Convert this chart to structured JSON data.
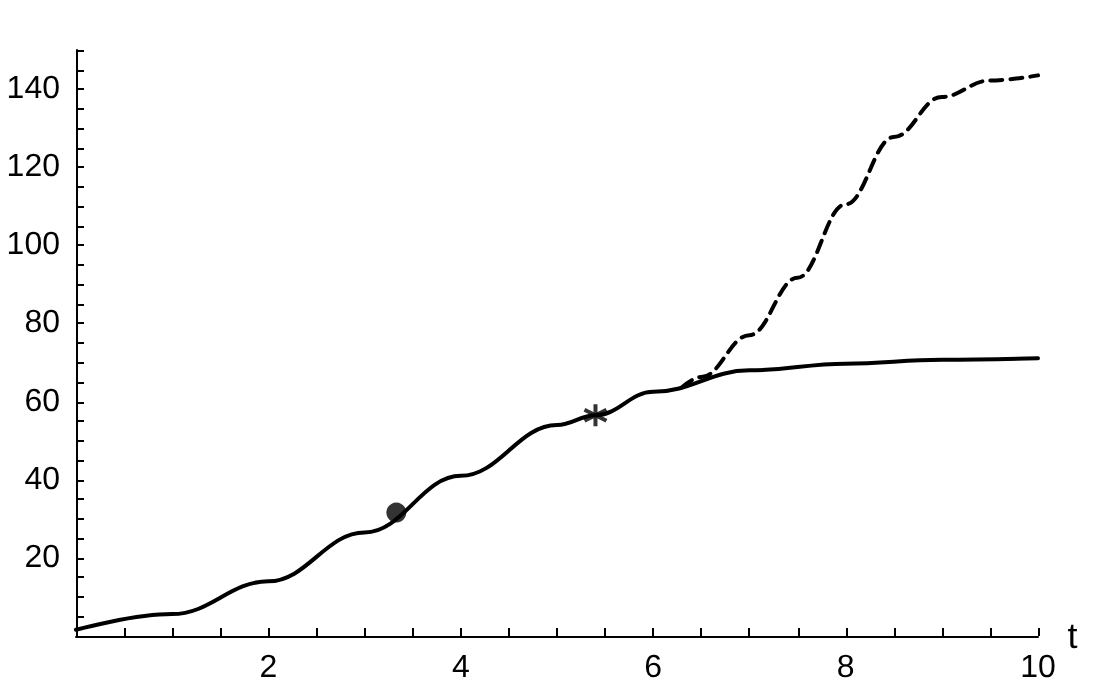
{
  "chart_data": {
    "type": "line",
    "xlabel": "t",
    "xlim": [
      0,
      10
    ],
    "ylim": [
      0,
      150
    ],
    "xticks": [
      {
        "value": 0.5,
        "label": null
      },
      {
        "value": 1,
        "label": null
      },
      {
        "value": 1.5,
        "label": null
      },
      2,
      {
        "value": 2.5,
        "label": null
      },
      {
        "value": 3,
        "label": null
      },
      {
        "value": 3.5,
        "label": null
      },
      4,
      {
        "value": 4.5,
        "label": null
      },
      {
        "value": 5,
        "label": null
      },
      {
        "value": 5.5,
        "label": null
      },
      6,
      {
        "value": 6.5,
        "label": null
      },
      {
        "value": 7,
        "label": null
      },
      {
        "value": 7.5,
        "label": null
      },
      8,
      {
        "value": 8.5,
        "label": null
      },
      {
        "value": 9,
        "label": null
      },
      {
        "value": 9.5,
        "label": null
      },
      10
    ],
    "yticks": [
      {
        "value": 5,
        "label": null
      },
      {
        "value": 10,
        "label": null
      },
      {
        "value": 15,
        "label": null
      },
      20,
      {
        "value": 25,
        "label": null
      },
      {
        "value": 30,
        "label": null
      },
      {
        "value": 35,
        "label": null
      },
      40,
      {
        "value": 45,
        "label": null
      },
      {
        "value": 50,
        "label": null
      },
      {
        "value": 55,
        "label": null
      },
      60,
      {
        "value": 65,
        "label": null
      },
      {
        "value": 70,
        "label": null
      },
      {
        "value": 75,
        "label": null
      },
      80,
      {
        "value": 85,
        "label": null
      },
      {
        "value": 90,
        "label": null
      },
      {
        "value": 95,
        "label": null
      },
      100,
      {
        "value": 105,
        "label": null
      },
      {
        "value": 110,
        "label": null
      },
      {
        "value": 115,
        "label": null
      },
      120,
      {
        "value": 125,
        "label": null
      },
      {
        "value": 130,
        "label": null
      },
      {
        "value": 135,
        "label": null
      },
      140,
      {
        "value": 145,
        "label": null
      },
      {
        "value": 150,
        "label": null
      }
    ],
    "grid": false,
    "series": [
      {
        "color": "#000000",
        "line_style": "solid",
        "marker": "none",
        "x": [
          0,
          1,
          2,
          3,
          4,
          5,
          5.4,
          6,
          7,
          8,
          9,
          10
        ],
        "values": [
          1.6,
          5.6,
          14,
          26.5,
          41,
          54,
          56.5,
          62.5,
          68,
          69.7,
          70.7,
          71.1
        ]
      },
      {
        "color": "#000000",
        "line_style": "dashed",
        "marker": "none",
        "x": [
          6.3,
          6.5,
          7,
          7.5,
          8,
          8.5,
          9,
          9.5,
          10
        ],
        "values": [
          63.7,
          66.3,
          77,
          91.7,
          110.5,
          127.7,
          138,
          142.2,
          143.5
        ]
      },
      {
        "type": "scatter",
        "color": "#000000",
        "marker": "circle",
        "x": [
          3.33
        ],
        "values": [
          31.6
        ]
      },
      {
        "type": "scatter",
        "color": "#000000",
        "marker": "cross",
        "x": [
          5.4
        ],
        "values": [
          56.5
        ]
      }
    ]
  }
}
